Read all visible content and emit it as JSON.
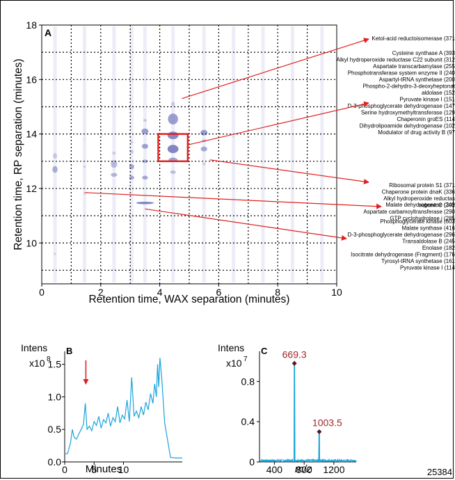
{
  "figure_id": "25384",
  "colors": {
    "spot": "#7b7fbf",
    "spot_light": "#c9cbe8",
    "arrow": "#e02020",
    "highlight_box": "#e02020",
    "trace": "#19a3db",
    "peak_label": "#a0262a"
  },
  "chart_data": [
    {
      "panel": "A",
      "type": "heatmap",
      "xlabel": "Retention time, WAX separation (minutes)",
      "ylabel": "Retention time, RP separation (minutes)",
      "xlim": [
        0,
        10
      ],
      "ylim": [
        8.5,
        18
      ],
      "x_ticks": [
        "0",
        "2",
        "4",
        "6",
        "8",
        "10"
      ],
      "y_ticks": [
        "10",
        "12",
        "14",
        "16",
        "18"
      ],
      "grid": true,
      "highlight_box": {
        "x": [
          3.95,
          4.95
        ],
        "y": [
          13,
          14
        ]
      },
      "spots": [
        {
          "x": 0.45,
          "y": 12.7,
          "w": 0.18,
          "h": 0.25,
          "i": 0.6
        },
        {
          "x": 0.45,
          "y": 13.2,
          "w": 0.14,
          "h": 0.2,
          "i": 0.35
        },
        {
          "x": 0.45,
          "y": 9.6,
          "w": 0.08,
          "h": 0.08,
          "i": 0.3
        },
        {
          "x": 1.45,
          "y": 12.8,
          "w": 0.08,
          "h": 0.12,
          "i": 0.25
        },
        {
          "x": 1.45,
          "y": 11.8,
          "w": 0.06,
          "h": 0.07,
          "i": 0.25
        },
        {
          "x": 1.45,
          "y": 13.8,
          "w": 0.05,
          "h": 0.07,
          "i": 0.2
        },
        {
          "x": 2.45,
          "y": 12.9,
          "w": 0.22,
          "h": 0.28,
          "i": 0.5
        },
        {
          "x": 2.45,
          "y": 12.5,
          "w": 0.22,
          "h": 0.14,
          "i": 0.55
        },
        {
          "x": 2.45,
          "y": 13.3,
          "w": 0.12,
          "h": 0.12,
          "i": 0.3
        },
        {
          "x": 3.05,
          "y": 12.8,
          "w": 0.17,
          "h": 0.18,
          "i": 0.65
        },
        {
          "x": 3.05,
          "y": 12.4,
          "w": 0.17,
          "h": 0.14,
          "i": 0.65
        },
        {
          "x": 3.05,
          "y": 13.35,
          "w": 0.12,
          "h": 0.12,
          "i": 0.4
        },
        {
          "x": 3.05,
          "y": 13.7,
          "w": 0.09,
          "h": 0.1,
          "i": 0.3
        },
        {
          "x": 3.5,
          "y": 14.1,
          "w": 0.24,
          "h": 0.2,
          "i": 0.75
        },
        {
          "x": 3.5,
          "y": 13.55,
          "w": 0.22,
          "h": 0.18,
          "i": 0.7
        },
        {
          "x": 3.5,
          "y": 13.0,
          "w": 0.2,
          "h": 0.12,
          "i": 0.6
        },
        {
          "x": 3.5,
          "y": 12.4,
          "w": 0.2,
          "h": 0.14,
          "i": 0.65
        },
        {
          "x": 3.5,
          "y": 11.47,
          "w": 0.6,
          "h": 0.09,
          "i": 0.95
        },
        {
          "x": 3.5,
          "y": 14.5,
          "w": 0.12,
          "h": 0.1,
          "i": 0.35
        },
        {
          "x": 4.45,
          "y": 14.55,
          "w": 0.34,
          "h": 0.4,
          "i": 0.75
        },
        {
          "x": 4.45,
          "y": 13.95,
          "w": 0.37,
          "h": 0.28,
          "i": 0.9
        },
        {
          "x": 4.45,
          "y": 13.45,
          "w": 0.37,
          "h": 0.3,
          "i": 0.95
        },
        {
          "x": 4.45,
          "y": 13.05,
          "w": 0.3,
          "h": 0.17,
          "i": 0.7
        },
        {
          "x": 4.45,
          "y": 12.6,
          "w": 0.2,
          "h": 0.12,
          "i": 0.45
        },
        {
          "x": 4.45,
          "y": 15.1,
          "w": 0.12,
          "h": 0.16,
          "i": 0.35
        },
        {
          "x": 5.5,
          "y": 14.05,
          "w": 0.24,
          "h": 0.2,
          "i": 0.75
        },
        {
          "x": 5.5,
          "y": 13.45,
          "w": 0.22,
          "h": 0.18,
          "i": 0.65
        },
        {
          "x": 5.5,
          "y": 13.75,
          "w": 0.16,
          "h": 0.1,
          "i": 0.45
        },
        {
          "x": 5.5,
          "y": 12.9,
          "w": 0.1,
          "h": 0.1,
          "i": 0.3
        },
        {
          "x": 6.5,
          "y": 13.9,
          "w": 0.06,
          "h": 0.08,
          "i": 0.2
        }
      ],
      "columns_x": [
        0.45,
        1.45,
        2.45,
        3.05,
        3.5,
        4.45,
        5.5,
        6.5,
        7.5,
        8.5,
        9.5
      ],
      "annotation_groups": [
        {
          "labels": [
            "Ketol-acid reductoisomerase (371"
          ],
          "arrow_from": [
            4.75,
            15.3
          ]
        },
        {
          "labels": [
            "Cysteine synthase A (393",
            "Alkyl hydroperoxide reductase C22 subunit (312",
            "Aspartate transcarbamylase (255",
            "Phosphotransferase system enzyme II (240",
            "Aspartyl-tRNA synthetase (200",
            "Phospho-2-dehydro-3-deoxyheptonat",
            "aldolase (152",
            "Pyruvate kinase I (151",
            "D-3-phosphoglycerate dehydrogenase (147",
            "Serine hydroxymethyltransferase (129",
            "Chaperonin groES (114",
            "Dihydrolipoamide dehydrogenase (102",
            "Modulator of drug activity B (97"
          ],
          "arrow_from": [
            4.95,
            13.6
          ]
        },
        {
          "labels": [
            "Ribosomal protein S1 (371",
            "Chaperone protein dnaK (336",
            "Alkyl hydroperoxide reductas",
            "subunit C (302",
            "Aspartate carbamoyltransferase (290",
            "GTP cyclohydrolase i (285"
          ],
          "arrow_from": [
            5.7,
            13.05
          ]
        },
        {
          "labels": [
            "Malate dehydrogenase (249"
          ],
          "arrow_from": [
            1.45,
            11.85
          ]
        },
        {
          "labels": [
            "Phosphoglycerate kinase (603",
            "Malate synthase (416",
            "D-3-phosphoglycerate dehydrogenase (296",
            "Transaldolase B (245",
            "Enolase (182",
            "Isocitrate dehydrogenase (Fragment) (176",
            "Tyrosyl-tRNA synthetase (161",
            "Pyruvate kinase I (114"
          ],
          "arrow_from": [
            3.5,
            11.25
          ]
        }
      ]
    },
    {
      "panel": "B",
      "type": "line",
      "ylabel": "Intens",
      "y_multiplier": "x10",
      "y_exponent": "8",
      "xlabel": "Minutes",
      "xlim": [
        0,
        20
      ],
      "ylim": [
        0,
        1.7
      ],
      "x_ticks": [
        "0",
        "5",
        "10"
      ],
      "x_tick_values": [
        0,
        5,
        10
      ],
      "y_ticks": [
        "0.0",
        "0.5",
        "1.0",
        "1.5"
      ],
      "y_tick_values": [
        0,
        0.5,
        1.0,
        1.5
      ],
      "marker_arrow_x": 3.6,
      "series": [
        {
          "x": [
            0,
            0.5,
            1,
            1.3,
            1.6,
            2,
            2.4,
            2.8,
            3.2,
            3.5,
            3.8,
            4.2,
            4.6,
            5,
            5.4,
            5.8,
            6.2,
            6.6,
            7,
            7.4,
            7.8,
            8.2,
            8.6,
            9,
            9.4,
            9.8,
            10.2,
            10.6,
            11,
            11.4,
            11.8,
            12.2,
            12.6,
            13,
            13.4,
            13.8,
            14.2,
            14.6,
            15,
            15.3,
            15.6,
            15.8,
            16,
            16.2,
            16.5,
            17,
            18,
            19,
            20
          ],
          "y": [
            0.12,
            0.13,
            0.3,
            0.5,
            0.38,
            0.35,
            0.43,
            0.5,
            0.58,
            0.9,
            0.5,
            0.55,
            0.48,
            0.62,
            0.56,
            0.7,
            0.52,
            0.65,
            0.6,
            0.75,
            0.55,
            0.68,
            0.62,
            0.85,
            0.6,
            0.72,
            0.66,
            0.95,
            0.62,
            1.3,
            0.7,
            0.78,
            0.68,
            0.85,
            0.72,
            0.92,
            0.8,
            1.05,
            0.9,
            1.2,
            1.0,
            1.5,
            1.15,
            1.6,
            1.3,
            0.6,
            0.07,
            0.06,
            0.06
          ]
        }
      ]
    },
    {
      "panel": "C",
      "type": "line",
      "ylabel": "Intens",
      "y_multiplier": "x10",
      "y_exponent": "7",
      "xlabel": "m/z",
      "xlim": [
        200,
        1500
      ],
      "ylim": [
        0,
        1.1
      ],
      "x_ticks": [
        "400",
        "800",
        "1200"
      ],
      "x_tick_values": [
        400,
        800,
        1200
      ],
      "y_ticks": [
        "0",
        "0.4",
        "0.8"
      ],
      "y_tick_values": [
        0,
        0.4,
        0.8
      ],
      "peaks": [
        {
          "mz": 669.3,
          "intensity": 0.98,
          "label": "669.3"
        },
        {
          "mz": 1003.5,
          "intensity": 0.3,
          "label": "1003.5"
        }
      ]
    }
  ]
}
